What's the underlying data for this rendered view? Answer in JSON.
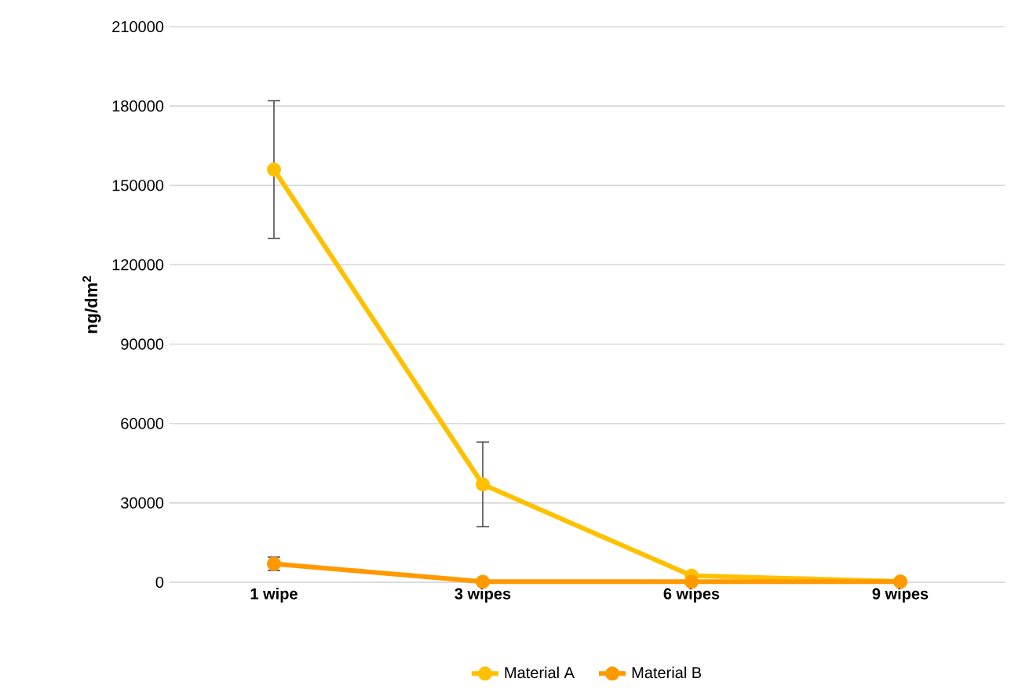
{
  "chart_data": {
    "type": "line",
    "ylabel": "ng/dm$^{2}$",
    "categories": [
      "1 wipe",
      "3 wipes",
      "6 wipes",
      "9 wipes"
    ],
    "series": [
      {
        "name": "Material A",
        "color": "#ffc000",
        "values": [
          156000,
          37000,
          2500,
          300
        ],
        "errors": [
          26000,
          16000,
          null,
          null
        ]
      },
      {
        "name": "Material B",
        "color": "#ff9900",
        "values": [
          7000,
          200,
          200,
          200
        ],
        "errors": [
          2500,
          null,
          null,
          null
        ]
      }
    ],
    "ylim": [
      0,
      210000
    ],
    "yticks": [
      0,
      30000,
      60000,
      90000,
      120000,
      150000,
      180000,
      210000
    ],
    "grid": "y",
    "legend": "bottom",
    "marker": "circle",
    "line_style": "solid"
  }
}
